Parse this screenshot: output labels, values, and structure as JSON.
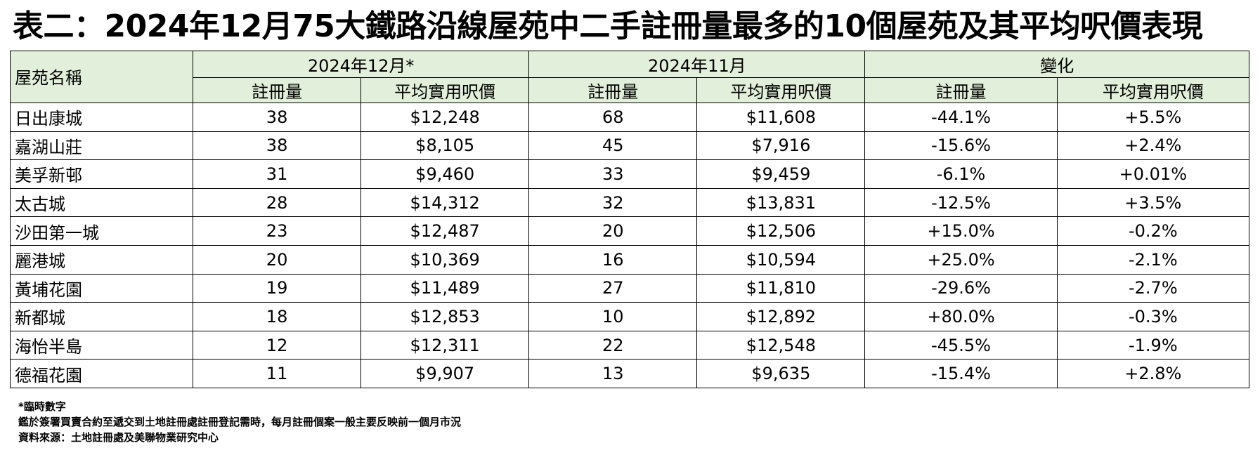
{
  "title": "表二：2024年12月75大鐵路沿線屋苑中二手註冊量最多的10個屋苑及其平均呎價表現",
  "header": {
    "estate_col": "屋苑名稱",
    "groups": [
      {
        "label": "2024年12月*"
      },
      {
        "label": "2024年11月"
      },
      {
        "label": "變化"
      }
    ],
    "sub_registrations": "註冊量",
    "sub_price": "平均實用呎價"
  },
  "rows": [
    {
      "name": "日出康城",
      "dec_reg": "38",
      "dec_price": "$12,248",
      "nov_reg": "68",
      "nov_price": "$11,608",
      "chg_reg": "-44.1%",
      "chg_price": "+5.5%"
    },
    {
      "name": "嘉湖山莊",
      "dec_reg": "38",
      "dec_price": "$8,105",
      "nov_reg": "45",
      "nov_price": "$7,916",
      "chg_reg": "-15.6%",
      "chg_price": "+2.4%"
    },
    {
      "name": "美孚新邨",
      "dec_reg": "31",
      "dec_price": "$9,460",
      "nov_reg": "33",
      "nov_price": "$9,459",
      "chg_reg": "-6.1%",
      "chg_price": "+0.01%"
    },
    {
      "name": "太古城",
      "dec_reg": "28",
      "dec_price": "$14,312",
      "nov_reg": "32",
      "nov_price": "$13,831",
      "chg_reg": "-12.5%",
      "chg_price": "+3.5%"
    },
    {
      "name": "沙田第一城",
      "dec_reg": "23",
      "dec_price": "$12,487",
      "nov_reg": "20",
      "nov_price": "$12,506",
      "chg_reg": "+15.0%",
      "chg_price": "-0.2%"
    },
    {
      "name": "麗港城",
      "dec_reg": "20",
      "dec_price": "$10,369",
      "nov_reg": "16",
      "nov_price": "$10,594",
      "chg_reg": "+25.0%",
      "chg_price": "-2.1%"
    },
    {
      "name": "黃埔花園",
      "dec_reg": "19",
      "dec_price": "$11,489",
      "nov_reg": "27",
      "nov_price": "$11,810",
      "chg_reg": "-29.6%",
      "chg_price": "-2.7%"
    },
    {
      "name": "新都城",
      "dec_reg": "18",
      "dec_price": "$12,853",
      "nov_reg": "10",
      "nov_price": "$12,892",
      "chg_reg": "+80.0%",
      "chg_price": "-0.3%"
    },
    {
      "name": "海怡半島",
      "dec_reg": "12",
      "dec_price": "$12,311",
      "nov_reg": "22",
      "nov_price": "$12,548",
      "chg_reg": "-45.5%",
      "chg_price": "-1.9%"
    },
    {
      "name": "德福花園",
      "dec_reg": "11",
      "dec_price": "$9,907",
      "nov_reg": "13",
      "nov_price": "$9,635",
      "chg_reg": "-15.4%",
      "chg_price": "+2.8%"
    }
  ],
  "notes": [
    "*臨時數字",
    "鑑於簽署買賣合約至遞交到土地註冊處註冊登記需時，每月註冊個案一般主要反映前一個月市況",
    "資料來源：土地註冊處及美聯物業研究中心"
  ],
  "colors": {
    "header_bg": "#e2efda",
    "border": "#000000"
  }
}
